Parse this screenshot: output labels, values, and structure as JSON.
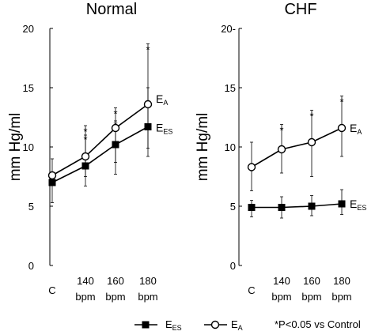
{
  "chart_data": [
    {
      "type": "line",
      "title": "Normal",
      "ylabel": "mm Hg/ml",
      "ylim": [
        0,
        20
      ],
      "yticks": [
        "0",
        "5",
        "10",
        "15",
        "20"
      ],
      "categories": [
        {
          "line1": "C",
          "line2": ""
        },
        {
          "line1": "140",
          "line2": "bpm"
        },
        {
          "line1": "160",
          "line2": "bpm"
        },
        {
          "line1": "180",
          "line2": "bpm"
        }
      ],
      "series": [
        {
          "key": "ees",
          "main": "E",
          "sub": "ES",
          "marker": "square",
          "values": [
            7.0,
            8.4,
            10.2,
            11.7
          ],
          "err_low": [
            5.3,
            6.7,
            7.7,
            9.2
          ],
          "err_high": [
            7.8,
            11.0,
            12.2,
            15.0
          ],
          "sig": [
            false,
            true,
            true,
            false
          ]
        },
        {
          "key": "ea",
          "main": "E",
          "sub": "A",
          "marker": "circle",
          "values": [
            7.6,
            9.2,
            11.6,
            13.6
          ],
          "err_low": [
            6.9,
            7.5,
            8.7,
            9.9
          ],
          "err_high": [
            9.0,
            11.8,
            13.3,
            18.7
          ],
          "sig": [
            false,
            true,
            true,
            true
          ]
        }
      ]
    },
    {
      "type": "line",
      "title": "CHF",
      "ylabel": "mm Hg/ml",
      "ylim": [
        0,
        20
      ],
      "yticks": [
        "0",
        "5",
        "10",
        "15",
        "20-"
      ],
      "categories": [
        {
          "line1": "C",
          "line2": ""
        },
        {
          "line1": "140",
          "line2": "bpm"
        },
        {
          "line1": "160",
          "line2": "bpm"
        },
        {
          "line1": "180",
          "line2": "bpm"
        }
      ],
      "series": [
        {
          "key": "ees",
          "main": "E",
          "sub": "ES",
          "marker": "square",
          "values": [
            4.9,
            4.9,
            5.0,
            5.2
          ],
          "err_low": [
            4.1,
            4.0,
            4.2,
            4.3
          ],
          "err_high": [
            5.5,
            5.8,
            5.9,
            6.4
          ],
          "sig": [
            false,
            false,
            false,
            false
          ]
        },
        {
          "key": "ea",
          "main": "E",
          "sub": "A",
          "marker": "circle",
          "values": [
            8.3,
            9.8,
            10.4,
            11.6
          ],
          "err_low": [
            6.3,
            7.8,
            7.5,
            9.2
          ],
          "err_high": [
            10.4,
            11.9,
            13.1,
            14.3
          ],
          "sig": [
            false,
            true,
            true,
            true
          ]
        }
      ]
    }
  ],
  "legend": {
    "items": [
      {
        "main": "E",
        "sub": "ES",
        "marker": "square"
      },
      {
        "main": "E",
        "sub": "A",
        "marker": "circle"
      }
    ],
    "note": "*P<0.05 vs Control",
    "star": "*"
  }
}
